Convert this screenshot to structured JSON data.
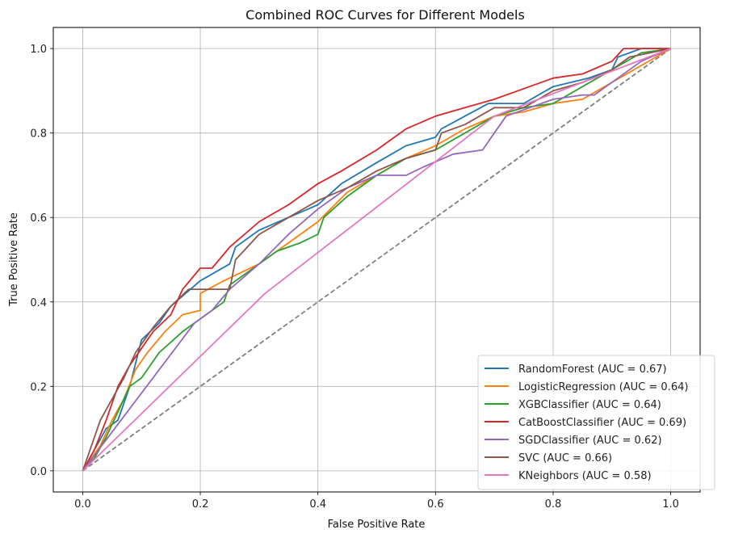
{
  "chart_data": {
    "type": "line",
    "title": "Combined ROC Curves for Different Models",
    "xlabel": "False Positive Rate",
    "ylabel": "True Positive Rate",
    "xlim": [
      -0.05,
      1.05
    ],
    "ylim": [
      -0.05,
      1.05
    ],
    "xticks": [
      "0.0",
      "0.2",
      "0.4",
      "0.6",
      "0.8",
      "1.0"
    ],
    "yticks": [
      "0.0",
      "0.2",
      "0.4",
      "0.6",
      "0.8",
      "1.0"
    ],
    "grid": true,
    "legend_position": "lower-right",
    "diagonal": {
      "name": "chance",
      "color": "#808080",
      "style": "dashed",
      "x": [
        0,
        1
      ],
      "y": [
        0,
        1
      ]
    },
    "series": [
      {
        "name": "RandomForest (AUC = 0.67)",
        "color": "#1f77b4",
        "x": [
          0,
          0.02,
          0.04,
          0.06,
          0.08,
          0.1,
          0.13,
          0.15,
          0.2,
          0.25,
          0.26,
          0.3,
          0.35,
          0.4,
          0.44,
          0.5,
          0.55,
          0.6,
          0.61,
          0.65,
          0.69,
          0.75,
          0.8,
          0.86,
          0.9,
          0.91,
          0.95,
          1.0
        ],
        "y": [
          0,
          0.05,
          0.1,
          0.12,
          0.2,
          0.31,
          0.35,
          0.39,
          0.45,
          0.49,
          0.53,
          0.57,
          0.6,
          0.63,
          0.68,
          0.73,
          0.77,
          0.79,
          0.81,
          0.84,
          0.87,
          0.87,
          0.91,
          0.93,
          0.95,
          0.98,
          1.0,
          1.0
        ]
      },
      {
        "name": "LogisticRegression (AUC = 0.64)",
        "color": "#ff7f0e",
        "x": [
          0,
          0.01,
          0.03,
          0.05,
          0.07,
          0.09,
          0.11,
          0.14,
          0.17,
          0.2,
          0.2,
          0.24,
          0.3,
          0.35,
          0.4,
          0.45,
          0.5,
          0.55,
          0.6,
          0.65,
          0.7,
          0.75,
          0.8,
          0.85,
          0.9,
          0.95,
          1.0
        ],
        "y": [
          0,
          0.02,
          0.06,
          0.12,
          0.17,
          0.24,
          0.28,
          0.33,
          0.37,
          0.38,
          0.42,
          0.45,
          0.49,
          0.54,
          0.59,
          0.66,
          0.7,
          0.74,
          0.77,
          0.81,
          0.84,
          0.85,
          0.87,
          0.88,
          0.92,
          0.96,
          1.0
        ]
      },
      {
        "name": "XGBClassifier (AUC = 0.64)",
        "color": "#2ca02c",
        "x": [
          0,
          0.02,
          0.04,
          0.06,
          0.08,
          0.1,
          0.13,
          0.17,
          0.21,
          0.24,
          0.25,
          0.3,
          0.33,
          0.37,
          0.4,
          0.41,
          0.45,
          0.5,
          0.55,
          0.6,
          0.65,
          0.7,
          0.75,
          0.8,
          0.85,
          0.9,
          0.95,
          1.0
        ],
        "y": [
          0,
          0.03,
          0.08,
          0.14,
          0.2,
          0.22,
          0.28,
          0.33,
          0.37,
          0.4,
          0.44,
          0.49,
          0.52,
          0.54,
          0.56,
          0.6,
          0.65,
          0.7,
          0.74,
          0.76,
          0.8,
          0.84,
          0.86,
          0.87,
          0.91,
          0.95,
          0.99,
          1.0
        ]
      },
      {
        "name": "CatBoostClassifier (AUC = 0.69)",
        "color": "#d62728",
        "x": [
          0,
          0.02,
          0.04,
          0.06,
          0.08,
          0.1,
          0.12,
          0.15,
          0.17,
          0.2,
          0.22,
          0.25,
          0.3,
          0.35,
          0.4,
          0.44,
          0.5,
          0.55,
          0.6,
          0.65,
          0.7,
          0.76,
          0.8,
          0.85,
          0.9,
          0.92,
          1.0
        ],
        "y": [
          0,
          0.05,
          0.12,
          0.2,
          0.25,
          0.29,
          0.33,
          0.37,
          0.43,
          0.48,
          0.48,
          0.53,
          0.59,
          0.63,
          0.68,
          0.71,
          0.76,
          0.81,
          0.84,
          0.86,
          0.88,
          0.91,
          0.93,
          0.94,
          0.97,
          1.0,
          1.0
        ]
      },
      {
        "name": "SGDClassifier (AUC = 0.62)",
        "color": "#9467bd",
        "x": [
          0,
          0.19,
          0.22,
          0.25,
          0.3,
          0.35,
          0.4,
          0.45,
          0.5,
          0.55,
          0.58,
          0.63,
          0.68,
          0.7,
          0.72,
          0.76,
          0.8,
          0.85,
          0.87,
          0.91,
          0.95,
          1.0
        ],
        "y": [
          0,
          0.35,
          0.38,
          0.43,
          0.49,
          0.56,
          0.62,
          0.67,
          0.7,
          0.7,
          0.72,
          0.75,
          0.76,
          0.8,
          0.84,
          0.86,
          0.88,
          0.89,
          0.89,
          0.93,
          0.97,
          1.0
        ]
      },
      {
        "name": "SVC (AUC = 0.66)",
        "color": "#8c564b",
        "x": [
          0,
          0.01,
          0.02,
          0.03,
          0.05,
          0.07,
          0.09,
          0.12,
          0.15,
          0.18,
          0.25,
          0.26,
          0.3,
          0.35,
          0.4,
          0.45,
          0.5,
          0.55,
          0.6,
          0.61,
          0.65,
          0.7,
          0.75,
          0.8,
          0.85,
          0.9,
          0.93,
          1.0
        ],
        "y": [
          0,
          0.04,
          0.08,
          0.12,
          0.17,
          0.22,
          0.28,
          0.34,
          0.39,
          0.43,
          0.43,
          0.5,
          0.56,
          0.6,
          0.64,
          0.67,
          0.71,
          0.74,
          0.76,
          0.8,
          0.82,
          0.86,
          0.86,
          0.9,
          0.92,
          0.95,
          0.98,
          1.0
        ]
      },
      {
        "name": "KNeighbors (AUC = 0.58)",
        "color": "#e377c2",
        "x": [
          0,
          0.31,
          0.7,
          1.0
        ],
        "y": [
          0,
          0.42,
          0.84,
          1.0
        ]
      }
    ]
  }
}
